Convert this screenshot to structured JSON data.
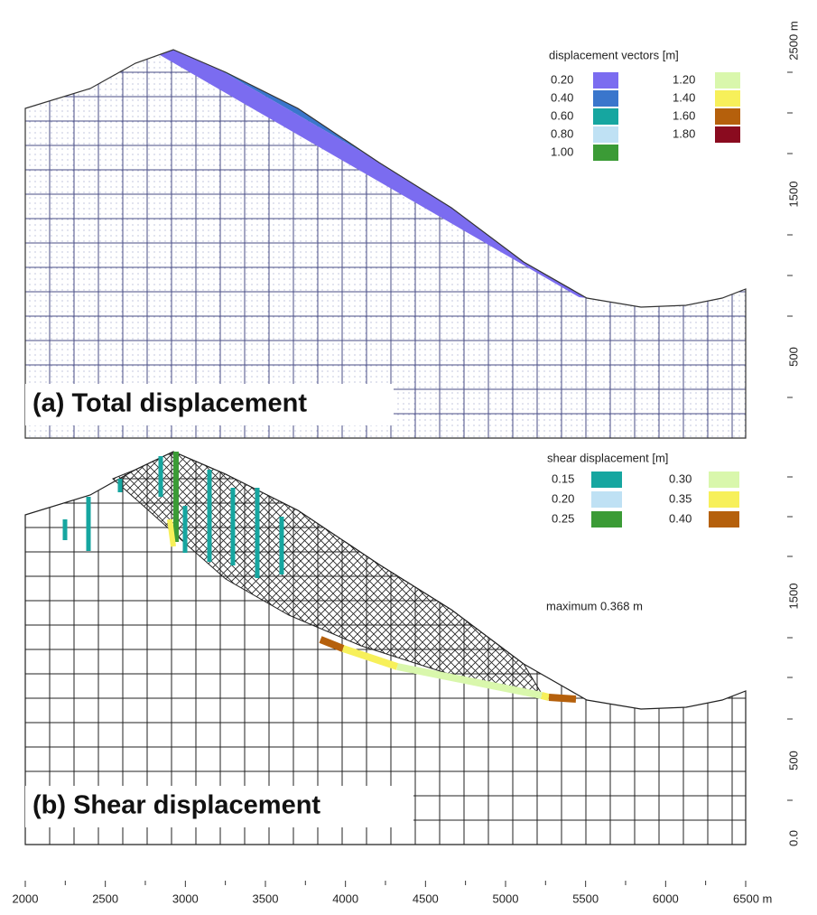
{
  "panels": [
    {
      "label": "(a) Total displacement",
      "legend": {
        "title": "displacement vectors [m]",
        "entries": [
          {
            "label": "0.20",
            "color": "#7b6cf0"
          },
          {
            "label": "0.40",
            "color": "#3a76cc"
          },
          {
            "label": "0.60",
            "color": "#16a6a0"
          },
          {
            "label": "0.80",
            "color": "#bfe1f4"
          },
          {
            "label": "1.00",
            "color": "#3b9b36"
          },
          {
            "label": "1.20",
            "color": "#d9f7ac"
          },
          {
            "label": "1.40",
            "color": "#f7f05a"
          },
          {
            "label": "1.60",
            "color": "#b5600c"
          },
          {
            "label": "1.80",
            "color": "#8a0b1f"
          }
        ]
      },
      "y_axis": {
        "ticks": [
          "2500 m",
          "1500",
          "500"
        ]
      }
    },
    {
      "label": "(b) Shear displacement",
      "legend": {
        "title": "shear displacement [m]",
        "entries": [
          {
            "label": "0.15",
            "color": "#16a6a0"
          },
          {
            "label": "0.20",
            "color": "#bfe1f4"
          },
          {
            "label": "0.25",
            "color": "#3b9b36"
          },
          {
            "label": "0.30",
            "color": "#d9f7ac"
          },
          {
            "label": "0.35",
            "color": "#f7f05a"
          },
          {
            "label": "0.40",
            "color": "#b5600c"
          }
        ]
      },
      "note": "maximum 0.368 m",
      "y_axis": {
        "ticks": [
          "1500",
          "500",
          "0.0"
        ]
      }
    }
  ],
  "x_axis": {
    "ticks": [
      "2000",
      "2500",
      "3000",
      "3500",
      "4000",
      "4500",
      "5000",
      "5500",
      "6000",
      "6500 m"
    ]
  }
}
